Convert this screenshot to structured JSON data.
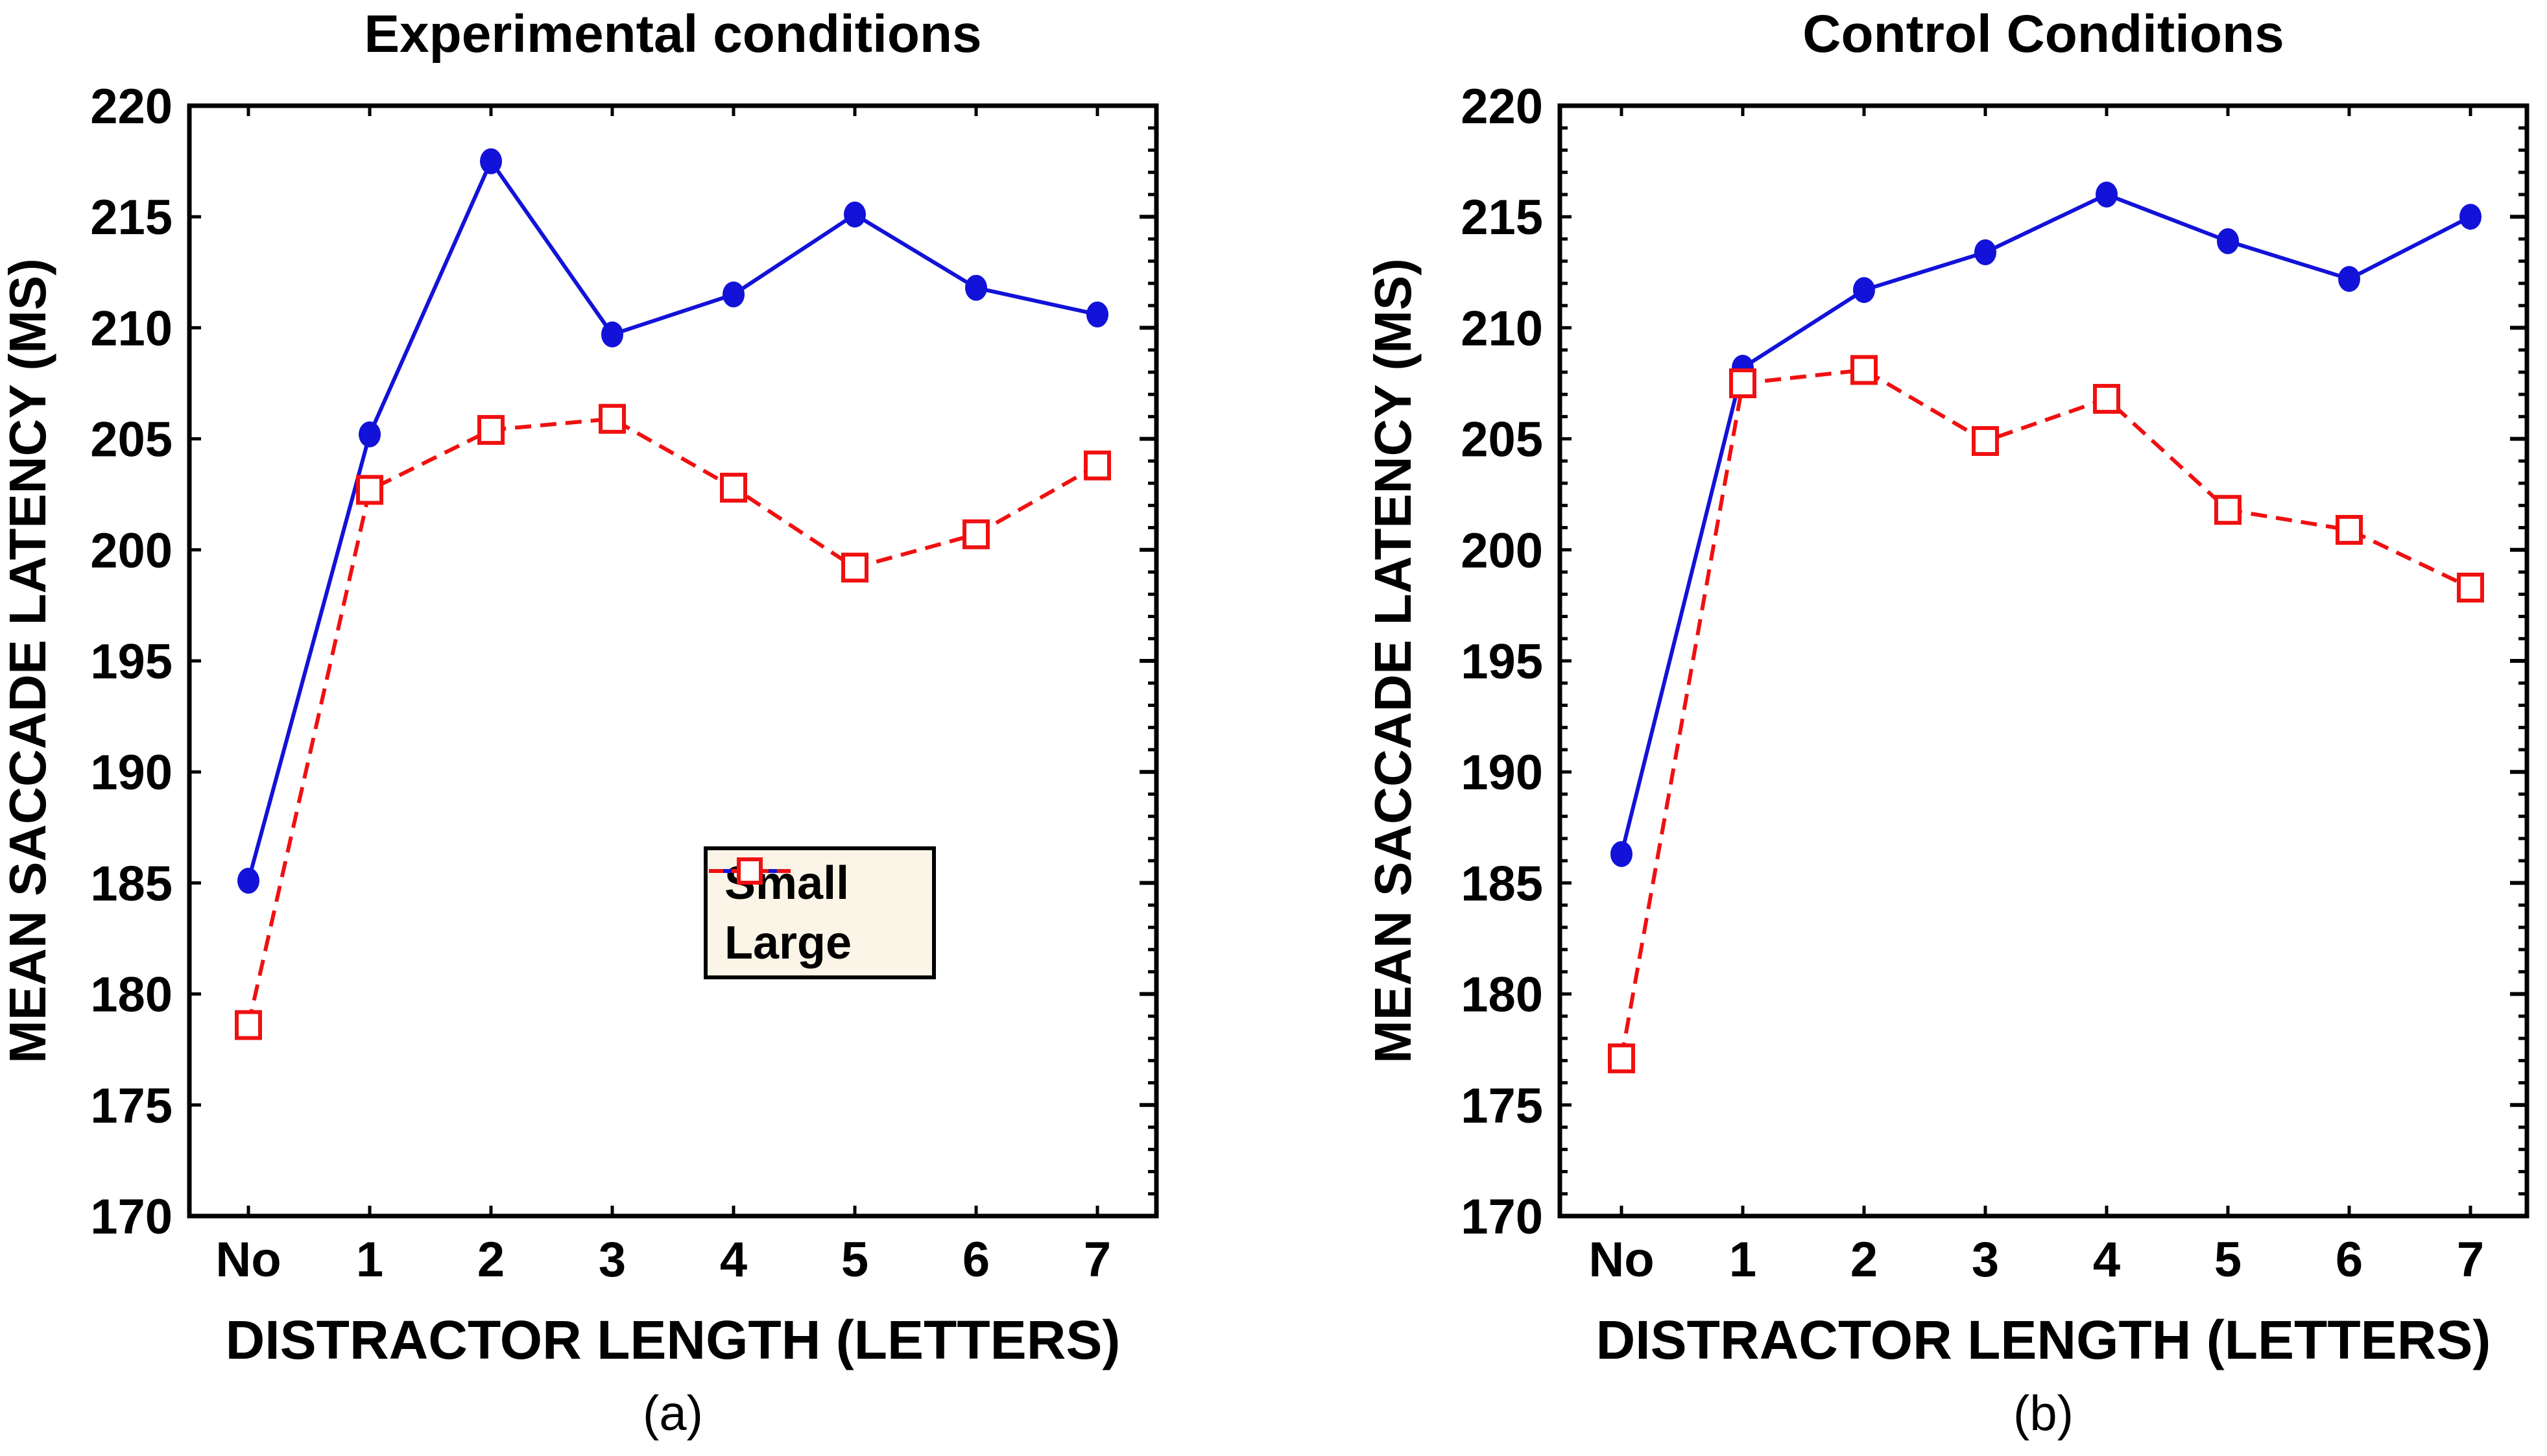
{
  "figure": {
    "background": "#ffffff"
  },
  "colors": {
    "small_series": "#1212d8",
    "large_series": "#f01010",
    "axis": "#000000",
    "legend_background": "#faf5e6",
    "text": "#000000"
  },
  "legend": {
    "entries": [
      {
        "label": "Small",
        "marker": "filled-circle",
        "line": "solid",
        "color": "#1212d8"
      },
      {
        "label": "Large",
        "marker": "open-square",
        "line": "dashed",
        "color": "#f01010"
      }
    ],
    "position": "center-right-of-left-panel"
  },
  "chart_data": [
    {
      "type": "line",
      "title": "Experimental conditions",
      "panel_label": "(a)",
      "xlabel": "DISTRACTOR LENGTH (LETTERS)",
      "ylabel": "MEAN SACCADE LATENCY (MS)",
      "categories": [
        "No",
        "1",
        "2",
        "3",
        "4",
        "5",
        "6",
        "7"
      ],
      "ylim": [
        170,
        220
      ],
      "yticks": [
        170,
        175,
        180,
        185,
        190,
        195,
        200,
        205,
        210,
        215,
        220
      ],
      "ytick_step": 5,
      "minor_tick_step": 1,
      "grid": false,
      "legend_visible": true,
      "series": [
        {
          "name": "Small",
          "marker": "filled-circle",
          "line": "solid",
          "color": "#1212d8",
          "values": [
            185.1,
            205.2,
            217.5,
            209.7,
            211.5,
            215.1,
            211.8,
            210.6
          ]
        },
        {
          "name": "Large",
          "marker": "open-square",
          "line": "dashed",
          "color": "#f01010",
          "values": [
            178.6,
            202.7,
            205.4,
            205.9,
            202.8,
            199.2,
            200.7,
            203.8
          ]
        }
      ]
    },
    {
      "type": "line",
      "title": "Control Conditions",
      "panel_label": "(b)",
      "xlabel": "DISTRACTOR LENGTH (LETTERS)",
      "ylabel": "MEAN SACCADE LATENCY (MS)",
      "categories": [
        "No",
        "1",
        "2",
        "3",
        "4",
        "5",
        "6",
        "7"
      ],
      "ylim": [
        170,
        220
      ],
      "yticks": [
        170,
        175,
        180,
        185,
        190,
        195,
        200,
        205,
        210,
        215,
        220
      ],
      "ytick_step": 5,
      "minor_tick_step": 1,
      "grid": false,
      "legend_visible": false,
      "series": [
        {
          "name": "Small",
          "marker": "filled-circle",
          "line": "solid",
          "color": "#1212d8",
          "values": [
            186.3,
            208.2,
            211.7,
            213.4,
            216.0,
            213.9,
            212.2,
            215.0
          ]
        },
        {
          "name": "Large",
          "marker": "open-square",
          "line": "dashed",
          "color": "#f01010",
          "values": [
            177.1,
            207.5,
            208.1,
            204.9,
            206.8,
            201.8,
            200.9,
            198.3
          ]
        }
      ]
    }
  ]
}
